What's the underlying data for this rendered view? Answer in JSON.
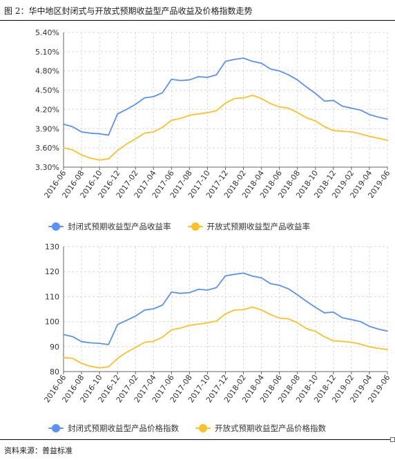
{
  "figure": {
    "title": "图 2：华中地区封闭式与开放式预期收益型产品收益及价格指数走势",
    "source": "资料来源：普益标准"
  },
  "colors": {
    "closed": "#5b8ff9",
    "open": "#fac228",
    "grid": "#d9d9d9",
    "axis": "#666666"
  },
  "chart_data": [
    {
      "type": "line",
      "y_format": "percent2",
      "ylim": [
        3.3,
        5.4
      ],
      "yticks": [
        "5.40%",
        "5.10%",
        "4.80%",
        "4.50%",
        "4.20%",
        "3.90%",
        "3.60%",
        "3.30%"
      ],
      "ytick_values": [
        5.4,
        5.1,
        4.8,
        4.5,
        4.2,
        3.9,
        3.6,
        3.3
      ],
      "xtick_labels": [
        "2016-06",
        "2016-08",
        "2016-10",
        "2016-12",
        "2017-02",
        "2017-04",
        "2017-06",
        "2017-08",
        "2017-10",
        "2017-12",
        "2018-02",
        "2018-04",
        "2018-06",
        "2018-08",
        "2018-10",
        "2018-12",
        "2019-02",
        "2019-04",
        "2019-06"
      ],
      "legend_position": "bottom",
      "grid": true,
      "series": [
        {
          "name": "封闭式预期收益型产品收益率",
          "color_key": "closed",
          "values": [
            3.97,
            3.93,
            3.85,
            3.83,
            3.82,
            3.8,
            4.13,
            4.2,
            4.28,
            4.38,
            4.4,
            4.46,
            4.67,
            4.65,
            4.66,
            4.71,
            4.7,
            4.74,
            4.95,
            4.98,
            5.0,
            4.95,
            4.92,
            4.83,
            4.8,
            4.74,
            4.66,
            4.55,
            4.45,
            4.33,
            4.34,
            4.25,
            4.22,
            4.19,
            4.12,
            4.08,
            4.05
          ]
        },
        {
          "name": "开放式预期收益型产品收益率",
          "color_key": "open",
          "values": [
            3.6,
            3.57,
            3.49,
            3.44,
            3.41,
            3.43,
            3.56,
            3.66,
            3.74,
            3.83,
            3.85,
            3.92,
            4.03,
            4.06,
            4.11,
            4.13,
            4.15,
            4.18,
            4.3,
            4.37,
            4.38,
            4.42,
            4.37,
            4.29,
            4.24,
            4.22,
            4.15,
            4.07,
            4.02,
            3.93,
            3.87,
            3.86,
            3.85,
            3.82,
            3.78,
            3.75,
            3.72
          ]
        }
      ]
    },
    {
      "type": "line",
      "y_format": "int",
      "ylim": [
        80,
        130
      ],
      "yticks": [
        "130",
        "120",
        "110",
        "100",
        "90",
        "80"
      ],
      "ytick_values": [
        130,
        120,
        110,
        100,
        90,
        80
      ],
      "xtick_labels": [
        "2016-06",
        "2016-08",
        "2016-10",
        "2016-12",
        "2017-02",
        "2017-04",
        "2017-06",
        "2017-08",
        "2017-10",
        "2017-12",
        "2018-02",
        "2018-04",
        "2018-06",
        "2018-08",
        "2018-10",
        "2018-12",
        "2019-02",
        "2019-04",
        "2019-06"
      ],
      "legend_position": "bottom",
      "grid": true,
      "series": [
        {
          "name": "封闭式预期收益型产品价格指数",
          "color_key": "closed",
          "values": [
            94.8,
            94.0,
            92.0,
            91.5,
            91.3,
            90.8,
            98.8,
            100.5,
            102.2,
            104.6,
            105.1,
            106.6,
            111.8,
            111.3,
            111.6,
            112.9,
            112.6,
            113.6,
            118.3,
            118.9,
            119.4,
            118.2,
            117.5,
            115.2,
            114.5,
            113.1,
            110.7,
            108.1,
            105.7,
            103.5,
            103.8,
            101.5,
            100.8,
            100.0,
            98.1,
            97.0,
            96.2
          ]
        },
        {
          "name": "开放式预期收益型产品价格指数",
          "color_key": "open",
          "values": [
            85.6,
            85.3,
            83.3,
            82.1,
            81.5,
            81.9,
            85.3,
            87.7,
            89.6,
            91.7,
            92.1,
            93.8,
            96.7,
            97.4,
            98.5,
            99.0,
            99.5,
            100.2,
            103.1,
            104.6,
            104.8,
            105.8,
            104.6,
            102.8,
            101.4,
            101.1,
            99.5,
            97.2,
            96.1,
            93.9,
            92.3,
            92.1,
            91.7,
            91.0,
            89.9,
            89.3,
            88.8
          ]
        }
      ]
    }
  ]
}
